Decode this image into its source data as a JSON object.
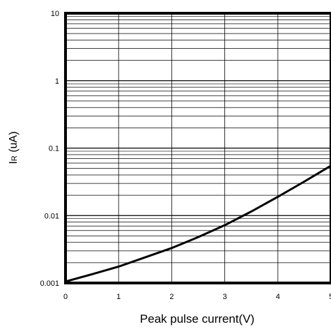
{
  "chart_data": {
    "type": "line",
    "title": "",
    "xlabel": "Peak pulse current(V)",
    "ylabel": "I",
    "ylabel_subscript": "R",
    "ylabel_unit": " (uA)",
    "y_scale": "log",
    "xlim": [
      0,
      5
    ],
    "ylim": [
      0.001,
      10
    ],
    "grid": true,
    "x_ticks": [
      0,
      1,
      2,
      3,
      4,
      5
    ],
    "x_tick_labels": [
      "0",
      "1",
      "2",
      "3",
      "4",
      "5"
    ],
    "y_ticks": [
      0.001,
      0.01,
      0.1,
      1,
      10
    ],
    "y_tick_labels": [
      "0.001",
      "0.01",
      "0.1",
      "1",
      "10"
    ],
    "series": [
      {
        "x": [
          0,
          0.5,
          1,
          1.5,
          2,
          2.5,
          3,
          3.5,
          4,
          4.5,
          5
        ],
        "y": [
          0.00105,
          0.00135,
          0.00175,
          0.0024,
          0.0033,
          0.0048,
          0.0072,
          0.0115,
          0.019,
          0.032,
          0.055
        ],
        "color": "#000000"
      }
    ]
  }
}
